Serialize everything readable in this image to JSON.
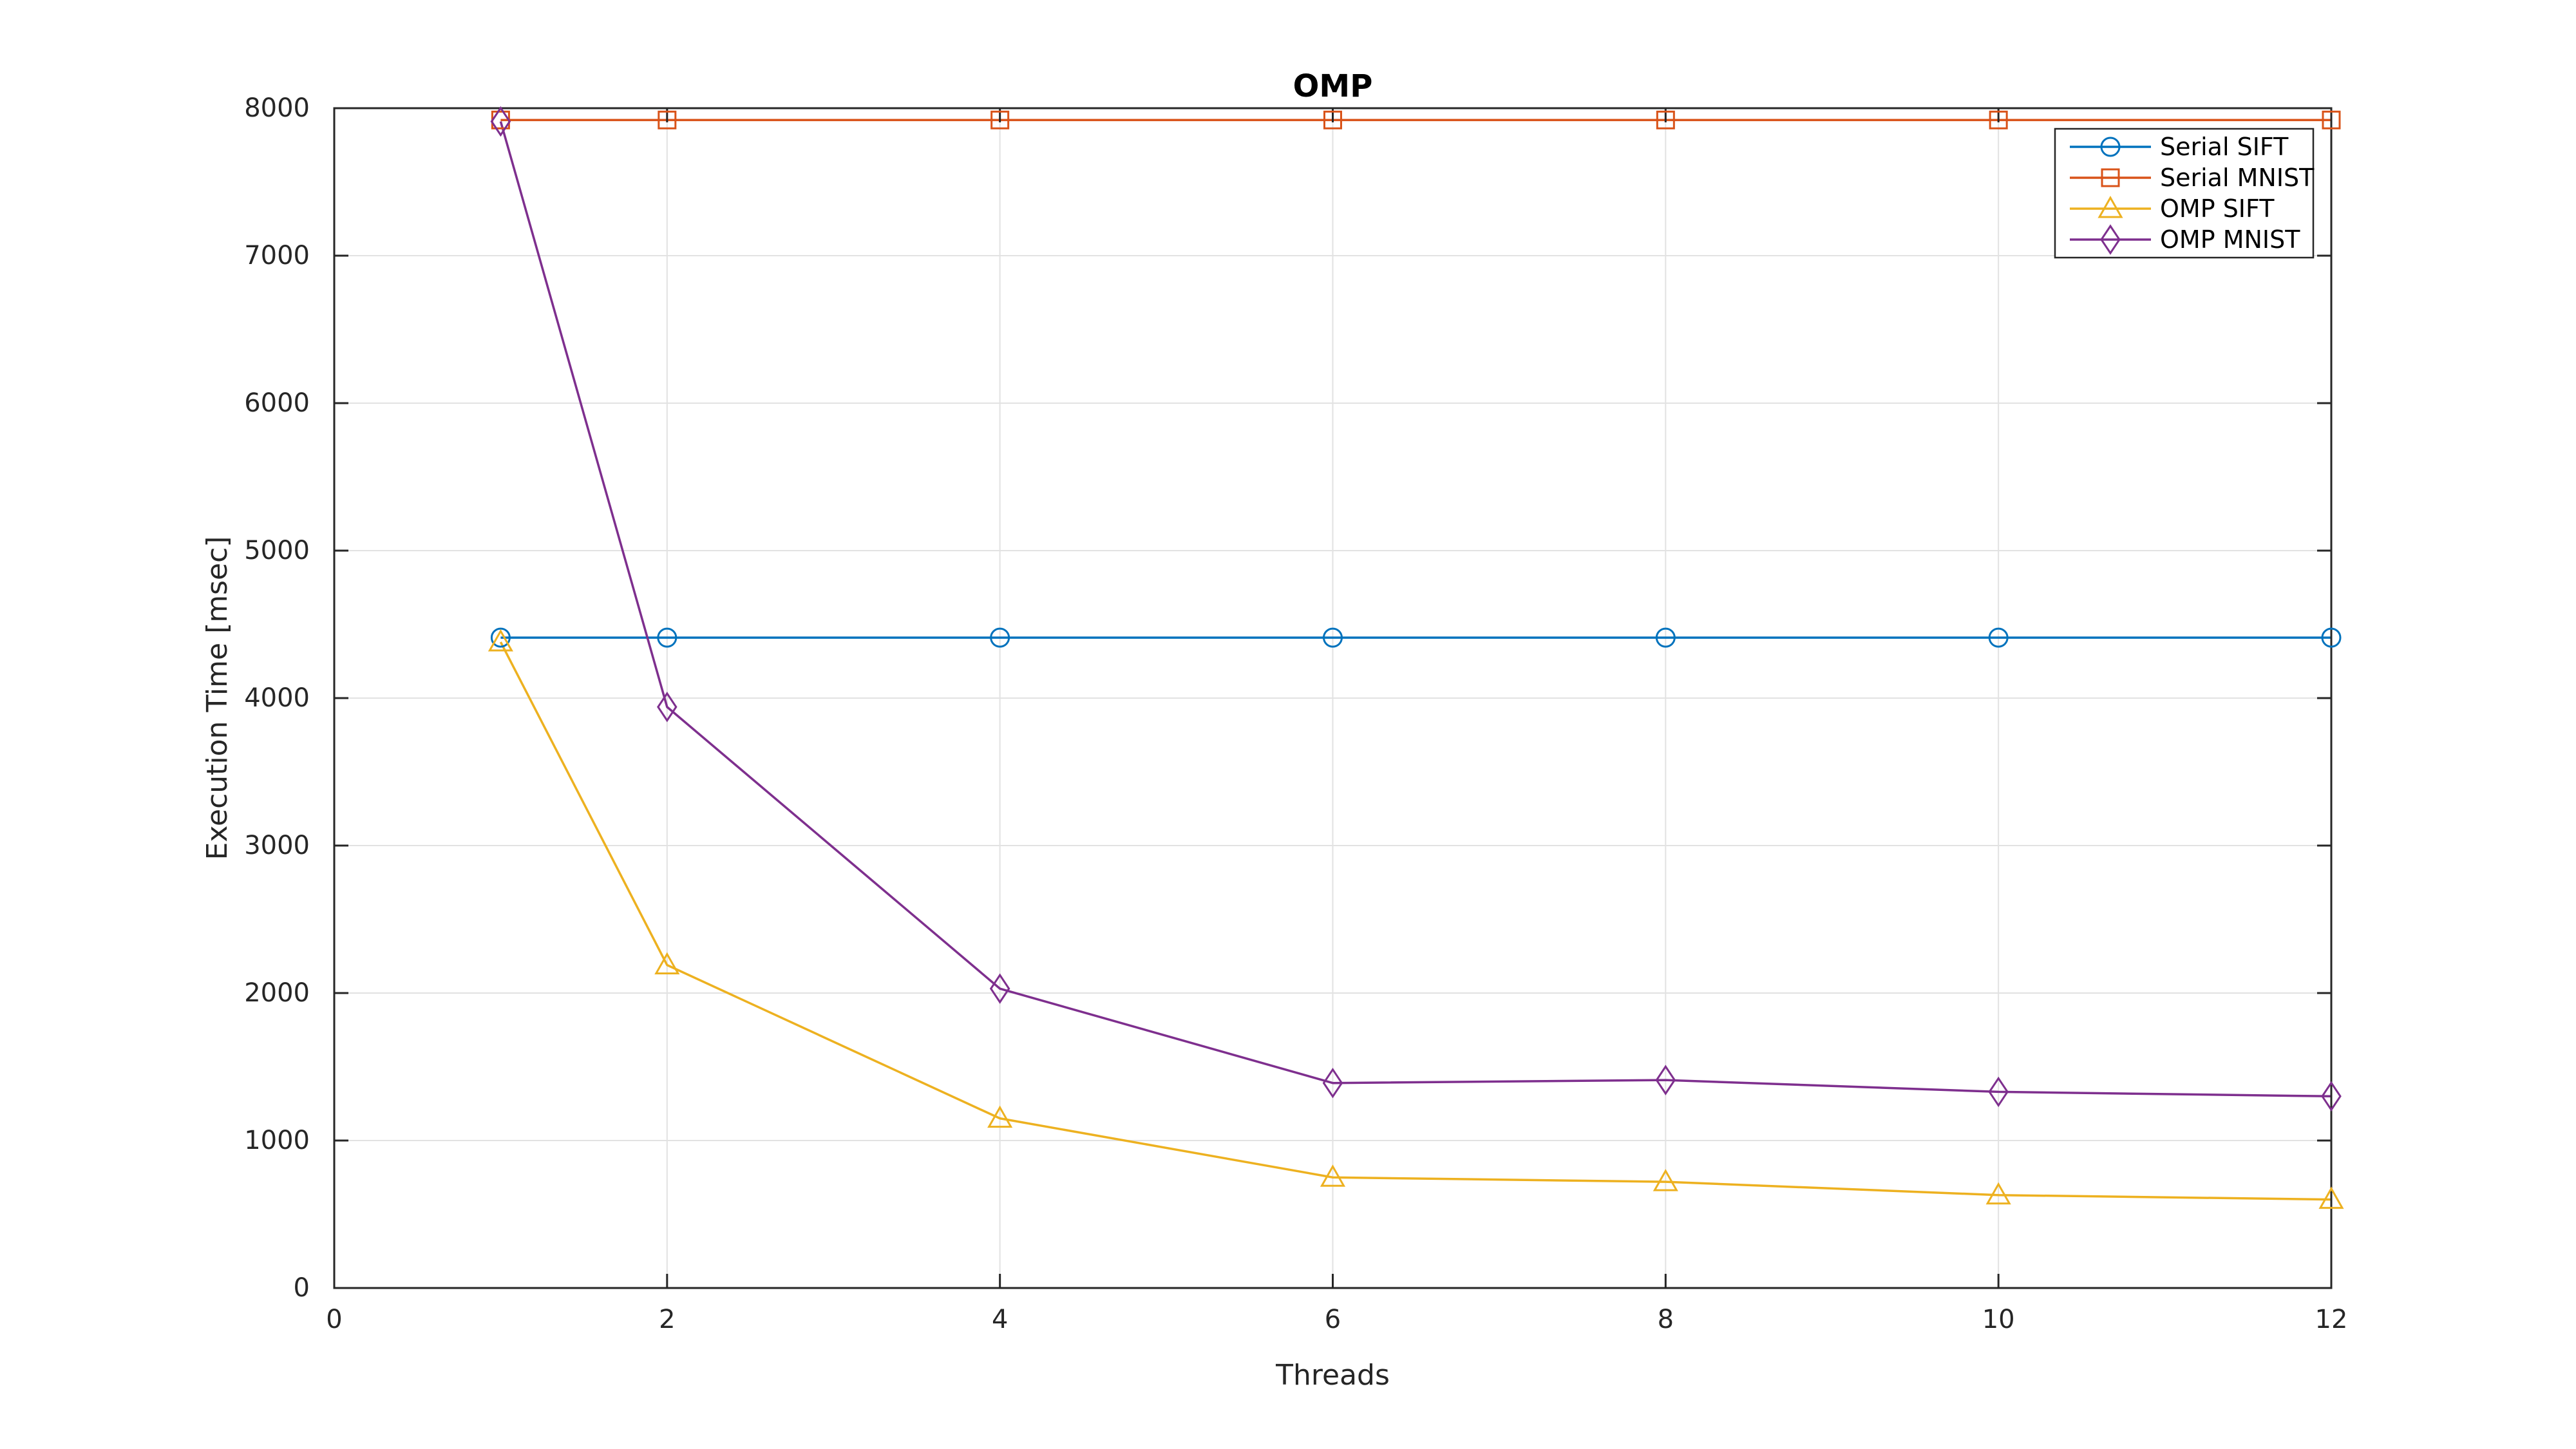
{
  "figure": {
    "background": "#ffffff"
  },
  "chart_data": {
    "type": "line",
    "title": "OMP",
    "xlabel": "Threads",
    "ylabel": "Execution Time [msec]",
    "xlim": [
      0,
      12
    ],
    "ylim": [
      0,
      8000
    ],
    "x_ticks": [
      0,
      2,
      4,
      6,
      8,
      10,
      12
    ],
    "y_ticks": [
      0,
      1000,
      2000,
      3000,
      4000,
      5000,
      6000,
      7000,
      8000
    ],
    "grid": true,
    "legend_position": "top-right",
    "x": [
      1,
      2,
      4,
      6,
      8,
      10,
      12
    ],
    "series": [
      {
        "name": "Serial SIFT",
        "color": "#0072BD",
        "marker": "circle",
        "values": [
          4410,
          4410,
          4410,
          4410,
          4410,
          4410,
          4410
        ]
      },
      {
        "name": "Serial MNIST",
        "color": "#D95319",
        "marker": "square",
        "values": [
          7920,
          7920,
          7920,
          7920,
          7920,
          7920,
          7920
        ]
      },
      {
        "name": "OMP SIFT",
        "color": "#EDB120",
        "marker": "triangle",
        "values": [
          4380,
          2190,
          1150,
          750,
          720,
          630,
          600
        ]
      },
      {
        "name": "OMP MNIST",
        "color": "#7E2F8E",
        "marker": "diamond",
        "values": [
          7910,
          3940,
          2030,
          1390,
          1410,
          1330,
          1300
        ]
      }
    ],
    "axis_color": "#262626",
    "grid_color": "#e2e2e2",
    "title_color": "#000000"
  }
}
